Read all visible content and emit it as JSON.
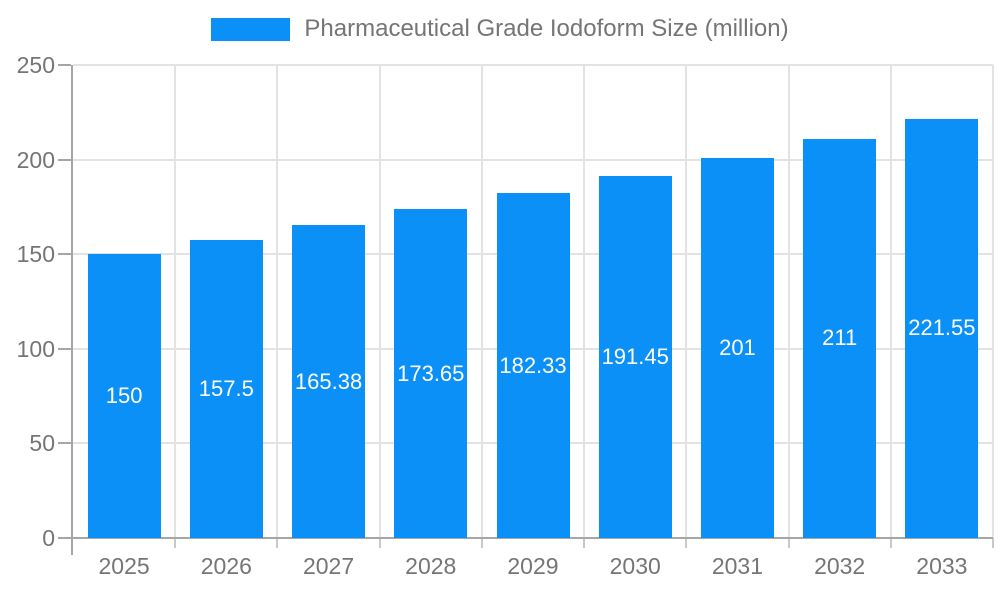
{
  "chart_data": {
    "type": "bar",
    "title": "Pharmaceutical Grade Iodoform Size (million)",
    "categories": [
      "2025",
      "2026",
      "2027",
      "2028",
      "2029",
      "2030",
      "2031",
      "2032",
      "2033"
    ],
    "values": [
      150,
      157.5,
      165.38,
      173.65,
      182.33,
      191.45,
      201,
      211,
      221.55
    ],
    "value_labels": [
      "150",
      "157.5",
      "165.38",
      "173.65",
      "182.33",
      "191.45",
      "201",
      "211",
      "221.55"
    ],
    "xlabel": "",
    "ylabel": "",
    "ylim": [
      0,
      250
    ],
    "yticks": [
      0,
      50,
      100,
      150,
      200,
      250
    ],
    "grid": true,
    "legend": {
      "position": "top",
      "label": "Pharmaceutical Grade Iodoform Size (million)"
    },
    "colors": {
      "bar": "#0b90f8",
      "value_label": "#ffffff",
      "axis": "#a6a6a6",
      "grid": "#e3e3e3",
      "x_tick_mark": "#c9c9c9",
      "tick_text": "#757575",
      "legend_text": "#757575",
      "background": "#ffffff"
    }
  }
}
